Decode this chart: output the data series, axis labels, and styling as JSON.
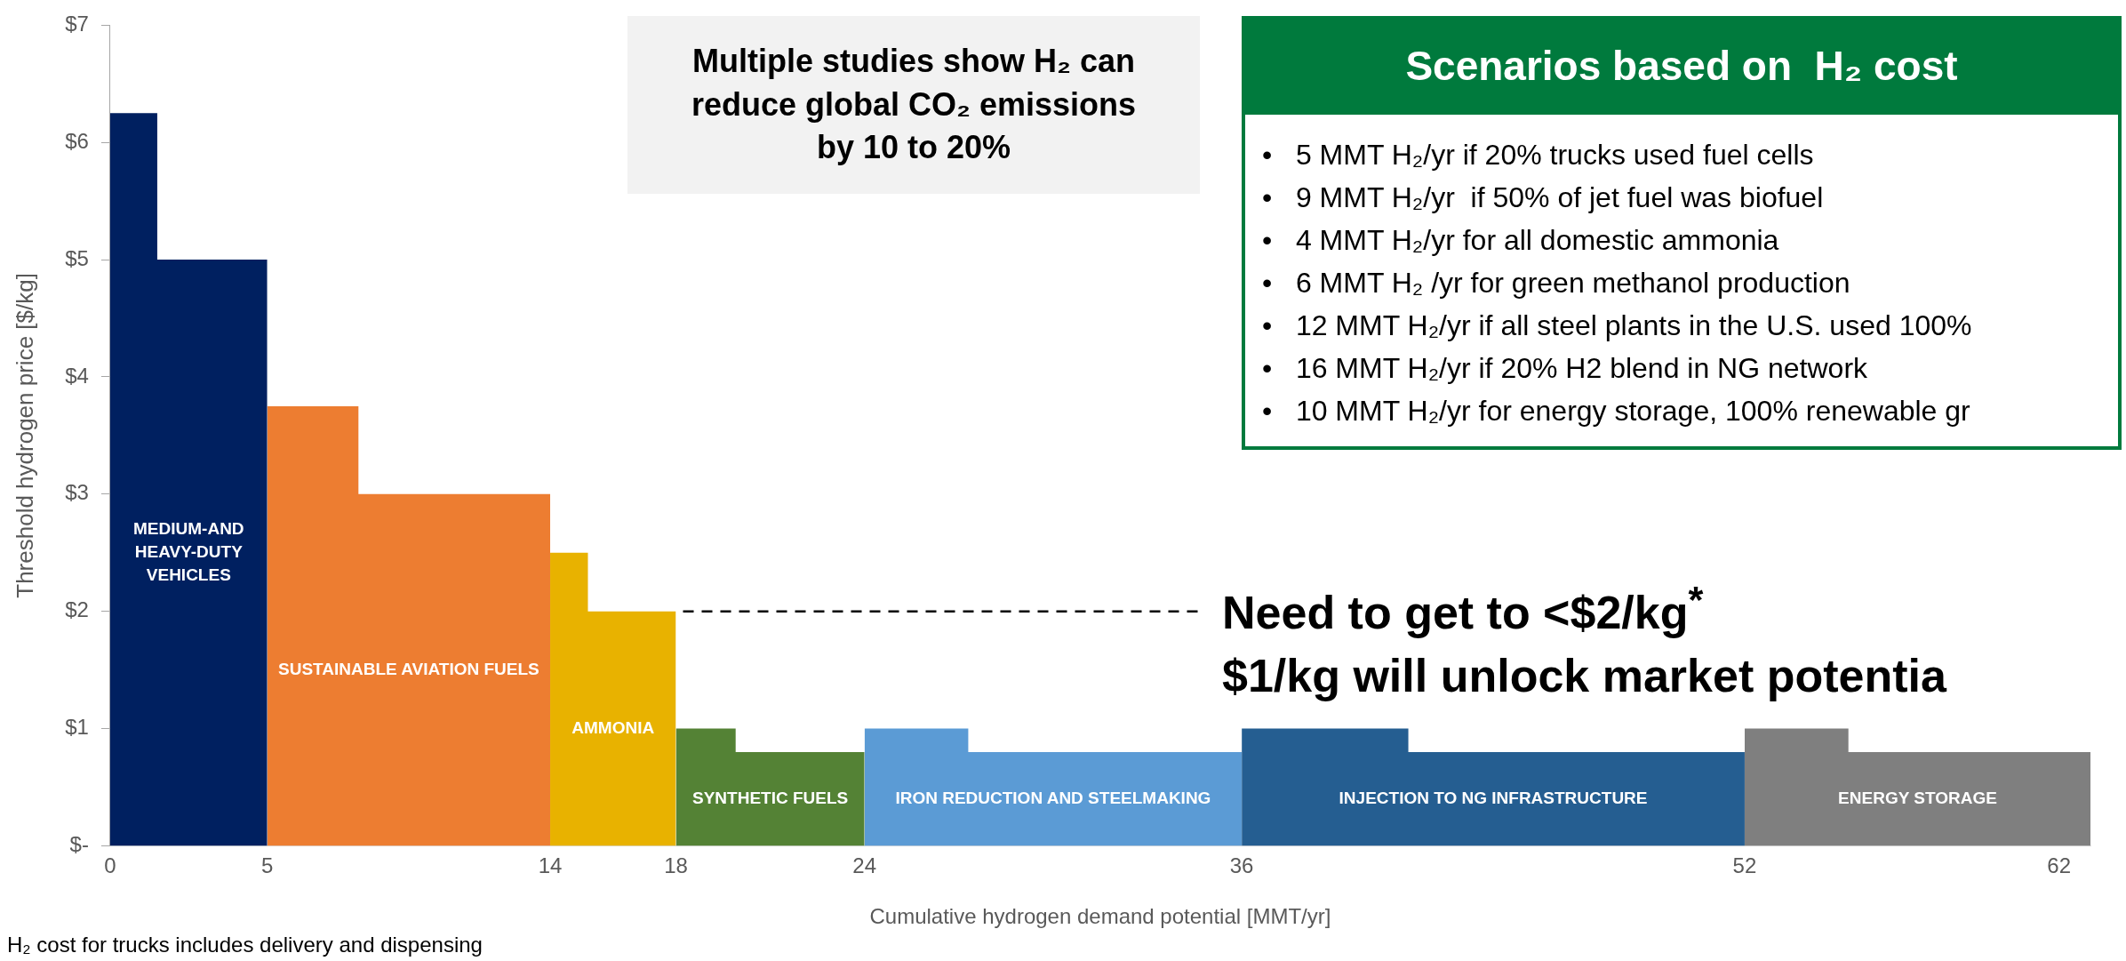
{
  "chart_data": {
    "type": "area",
    "xlabel": "Cumulative hydrogen demand potential [MMT/yr]",
    "ylabel": "Threshold hydrogen price [$/kg]",
    "xlim": [
      0,
      63
    ],
    "xticks": [
      0,
      5,
      14,
      18,
      24,
      36,
      52,
      62
    ],
    "ylim": [
      0,
      7
    ],
    "yticks": [
      {
        "value": 0,
        "label": "$-"
      },
      {
        "value": 1,
        "label": "$1"
      },
      {
        "value": 2,
        "label": "$2"
      },
      {
        "value": 3,
        "label": "$3"
      },
      {
        "value": 4,
        "label": "$4"
      },
      {
        "value": 5,
        "label": "$5"
      },
      {
        "value": 6,
        "label": "$6"
      },
      {
        "value": 7,
        "label": "$7"
      }
    ],
    "series": [
      {
        "name": "MEDIUM-AND HEAVY-DUTY VEHICLES",
        "color": "#002060",
        "x": [
          0,
          0,
          1.5,
          1.5,
          5,
          5
        ],
        "values": [
          0,
          6.25,
          6.25,
          5,
          5,
          0
        ]
      },
      {
        "name": "SUSTAINABLE AVIATION FUELS",
        "color": "#ed7d31",
        "x": [
          5,
          5,
          7.9,
          7.9,
          14,
          14
        ],
        "values": [
          0,
          3.75,
          3.75,
          3,
          3,
          0
        ]
      },
      {
        "name": "AMMONIA",
        "color": "#e8b200",
        "x": [
          14,
          14,
          15.2,
          15.2,
          18,
          18
        ],
        "values": [
          0,
          2.5,
          2.5,
          2,
          2,
          0
        ]
      },
      {
        "name": "SYNTHETIC FUELS",
        "color": "#548235",
        "x": [
          18,
          18,
          19.9,
          19.9,
          24,
          24
        ],
        "values": [
          0,
          1,
          1,
          0.8,
          0.8,
          0
        ]
      },
      {
        "name": "IRON REDUCTION AND STEELMAKING",
        "color": "#5b9bd5",
        "x": [
          24,
          24,
          27.3,
          27.3,
          36,
          36
        ],
        "values": [
          0,
          1,
          1,
          0.8,
          0.8,
          0
        ]
      },
      {
        "name": "INJECTION TO NG INFRASTRUCTURE",
        "color": "#255e91",
        "x": [
          36,
          36,
          41.3,
          41.3,
          52,
          52
        ],
        "values": [
          0,
          1,
          1,
          0.8,
          0.8,
          0
        ]
      },
      {
        "name": "ENERGY STORAGE",
        "color": "#7f7f7f",
        "x": [
          52,
          52,
          55.3,
          55.3,
          63,
          63
        ],
        "values": [
          0,
          1,
          1,
          0.8,
          0.8,
          0
        ]
      }
    ],
    "annotations": [
      "Multiple studies show H₂ can reduce global CO₂ emissions by 10 to 20%",
      "Scenarios based on  H₂ cost",
      "•   5 MMT H₂/yr if 20% trucks used fuel cells",
      "•   9 MMT H₂/yr  if 50% of jet fuel was biofuel",
      "•   4 MMT H₂/yr for all domestic ammonia",
      "•   6 MMT H₂ /yr for green methanol production",
      "•   12 MMT H₂/yr if all steel plants in the U.S. used 100%",
      "•   16 MMT H₂/yr if 20% H2 blend in NG network",
      "•   10 MMT H₂/yr for energy storage, 100% renewable gr",
      {
        "text": "Need to get to <$2/kg$^{*}$",
        "x": 18,
        "y": 2
      },
      "$1/kg will unlock market potentia",
      "H₂ cost for trucks includes delivery and dispensing"
    ]
  }
}
